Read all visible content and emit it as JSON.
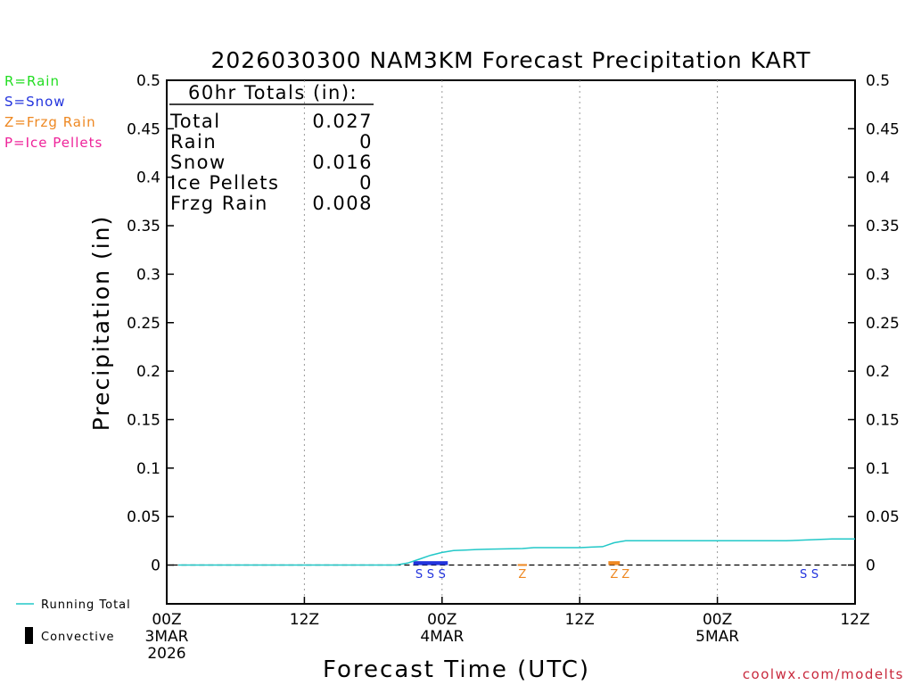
{
  "chart_data": {
    "type": "area",
    "title": "2026030300 NAM3KM Forecast Precipitation KART",
    "xlabel": "Forecast Time (UTC)",
    "ylabel": "Precipitation (in)",
    "ylim": [
      -0.04,
      0.5
    ],
    "xlim_hours": [
      0,
      60
    ],
    "y_ticks": [
      {
        "v": 0,
        "label": "0"
      },
      {
        "v": 0.05,
        "label": "0.05"
      },
      {
        "v": 0.1,
        "label": "0.1"
      },
      {
        "v": 0.15,
        "label": "0.15"
      },
      {
        "v": 0.2,
        "label": "0.2"
      },
      {
        "v": 0.25,
        "label": "0.25"
      },
      {
        "v": 0.3,
        "label": "0.3"
      },
      {
        "v": 0.35,
        "label": "0.35"
      },
      {
        "v": 0.4,
        "label": "0.4"
      },
      {
        "v": 0.45,
        "label": "0.45"
      },
      {
        "v": 0.5,
        "label": "0.5"
      }
    ],
    "x_ticks": [
      {
        "h": 0,
        "lines": [
          "00Z",
          "3MAR",
          "2026"
        ]
      },
      {
        "h": 12,
        "lines": [
          "12Z"
        ]
      },
      {
        "h": 24,
        "lines": [
          "00Z",
          "4MAR"
        ]
      },
      {
        "h": 36,
        "lines": [
          "12Z"
        ]
      },
      {
        "h": 48,
        "lines": [
          "00Z",
          "5MAR"
        ]
      },
      {
        "h": 60,
        "lines": [
          "12Z"
        ]
      }
    ],
    "running_total": {
      "name": "Running Total",
      "color": "#22c8c8",
      "x": [
        1,
        20,
        21,
        22,
        23,
        24,
        25,
        26,
        27,
        28,
        29,
        30,
        31,
        32,
        33,
        34,
        35,
        36,
        37,
        38,
        39,
        40,
        41,
        44,
        50,
        54,
        56,
        58,
        60
      ],
      "y": [
        0,
        0,
        0.002,
        0.006,
        0.01,
        0.013,
        0.015,
        0.0155,
        0.016,
        0.0163,
        0.0166,
        0.0168,
        0.017,
        0.018,
        0.018,
        0.018,
        0.018,
        0.018,
        0.0185,
        0.019,
        0.023,
        0.025,
        0.025,
        0.025,
        0.025,
        0.025,
        0.026,
        0.027,
        0.027
      ]
    },
    "period_bars": [
      {
        "ptype": "S",
        "h0": 21.5,
        "h1": 24.5,
        "value": 0.004
      },
      {
        "ptype": "Z",
        "h0": 30.6,
        "h1": 31.4,
        "value": 0.001
      },
      {
        "ptype": "Z",
        "h0": 38.5,
        "h1": 39.5,
        "value": 0.004
      }
    ],
    "ptype_markers": [
      {
        "ptype": "S",
        "h": 22.0
      },
      {
        "ptype": "S",
        "h": 23.0
      },
      {
        "ptype": "S",
        "h": 24.0
      },
      {
        "ptype": "Z",
        "h": 31.0
      },
      {
        "ptype": "Z",
        "h": 39.0
      },
      {
        "ptype": "Z",
        "h": 40.0
      },
      {
        "ptype": "S",
        "h": 55.5
      },
      {
        "ptype": "S",
        "h": 56.5
      }
    ],
    "ptype_colors": {
      "R": "#22dd22",
      "S": "#2233dd",
      "Z": "#ee8822",
      "P": "#ee2299"
    },
    "legend_left": [
      {
        "text": "R=Rain",
        "ptype": "R"
      },
      {
        "text": "S=Snow",
        "ptype": "S"
      },
      {
        "text": "Z=Frzg Rain",
        "ptype": "Z"
      },
      {
        "text": "P=Ice Pellets",
        "ptype": "P"
      }
    ],
    "legend_bottom": {
      "running_total": "Running Total",
      "convective": "Convective"
    },
    "totals_box": {
      "title": "60hr Totals (in):",
      "rows": [
        {
          "label": "Total",
          "value": "0.027"
        },
        {
          "label": "Rain",
          "value": "0"
        },
        {
          "label": "Snow",
          "value": "0.016"
        },
        {
          "label": "Ice Pellets",
          "value": "0"
        },
        {
          "label": "Frzg Rain",
          "value": "0.008"
        }
      ]
    },
    "credit": "coolwx.com/modelts"
  }
}
